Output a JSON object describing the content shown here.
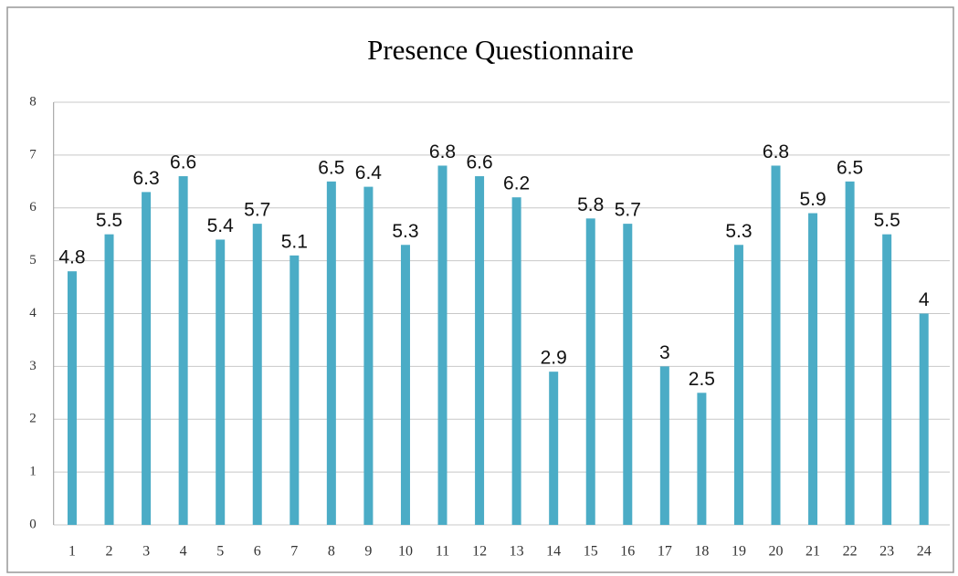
{
  "chart_data": {
    "type": "bar",
    "title": "Presence Questionnaire",
    "categories": [
      "1",
      "2",
      "3",
      "4",
      "5",
      "6",
      "7",
      "8",
      "9",
      "10",
      "11",
      "12",
      "13",
      "14",
      "15",
      "16",
      "17",
      "18",
      "19",
      "20",
      "21",
      "22",
      "23",
      "24"
    ],
    "values": [
      4.8,
      5.5,
      6.3,
      6.6,
      5.4,
      5.7,
      5.1,
      6.5,
      6.4,
      5.3,
      6.8,
      6.6,
      6.2,
      2.9,
      5.8,
      5.7,
      3,
      2.5,
      5.3,
      6.8,
      5.9,
      6.5,
      5.5,
      4
    ],
    "color": "#4bacc6",
    "ylim": [
      0,
      8
    ],
    "yticks": [
      0,
      1,
      2,
      3,
      4,
      5,
      6,
      7,
      8
    ],
    "grid": true
  }
}
